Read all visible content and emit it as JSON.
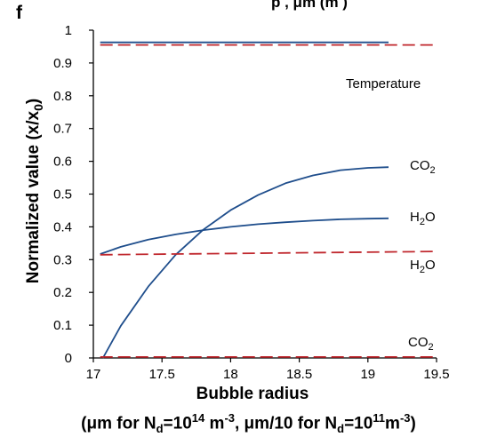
{
  "panel_letter": "f",
  "cutoff_title": "p  ,  μm (m  )",
  "chart_data": {
    "type": "line",
    "ylabel_main": "Normalized value (x/x",
    "ylabel_sub": "0",
    "ylabel_end": ")",
    "xlabel": "Bubble radius",
    "x_caption": {
      "p1": "(μm for N",
      "s1": "d",
      "p2": "=10",
      "e1": "14",
      "p3": " m",
      "e2": "-3",
      "p4": ", μm/10 for N",
      "s2": "d",
      "p5": "=10",
      "e3": "11",
      "p6": "m",
      "e4": "-3",
      "p7": ")"
    },
    "xlim": [
      17,
      19.5
    ],
    "ylim": [
      0,
      1
    ],
    "xticks": [
      "17",
      "17.5",
      "18",
      "18.5",
      "19",
      "19.5"
    ],
    "yticks": [
      "0",
      "0.1",
      "0.2",
      "0.3",
      "0.4",
      "0.5",
      "0.6",
      "0.7",
      "0.8",
      "0.9",
      "1"
    ],
    "grid": false,
    "series": [
      {
        "style": "solid",
        "color": "#1f4e8c",
        "x": [
          17.05,
          19.15
        ],
        "y": [
          0.963,
          0.963
        ]
      },
      {
        "style": "dashed",
        "color": "#c0282e",
        "x": [
          17.05,
          19.5
        ],
        "y": [
          0.955,
          0.955
        ]
      },
      {
        "style": "solid",
        "color": "#1f4e8c",
        "x": [
          17.05,
          17.2,
          17.4,
          17.6,
          17.8,
          18.0,
          18.2,
          18.4,
          18.6,
          18.8,
          19.0,
          19.15
        ],
        "y": [
          0.317,
          0.339,
          0.361,
          0.377,
          0.39,
          0.4,
          0.408,
          0.414,
          0.419,
          0.423,
          0.425,
          0.426
        ]
      },
      {
        "style": "solid",
        "color": "#1f4e8c",
        "x": [
          17.07,
          17.2,
          17.4,
          17.6,
          17.8,
          18.0,
          18.2,
          18.4,
          18.6,
          18.8,
          19.0,
          19.15
        ],
        "y": [
          0.0,
          0.098,
          0.218,
          0.315,
          0.391,
          0.451,
          0.497,
          0.533,
          0.557,
          0.573,
          0.58,
          0.582
        ]
      },
      {
        "style": "dashed",
        "color": "#c0282e",
        "x": [
          17.05,
          19.5
        ],
        "y": [
          0.315,
          0.325
        ]
      },
      {
        "style": "dashed",
        "color": "#c0282e",
        "x": [
          17.05,
          19.5
        ],
        "y": [
          0.003,
          0.003
        ]
      }
    ],
    "annotations": {
      "temperature": "Temperature",
      "co2_top_main": "CO",
      "co2_top_sub": "2",
      "h2o_top_main": "H",
      "h2o_top_sub": "2",
      "h2o_top_end": "O",
      "h2o_bot_main": "H",
      "h2o_bot_sub": "2",
      "h2o_bot_end": "O",
      "co2_bot_main": "CO",
      "co2_bot_sub": "2"
    }
  }
}
